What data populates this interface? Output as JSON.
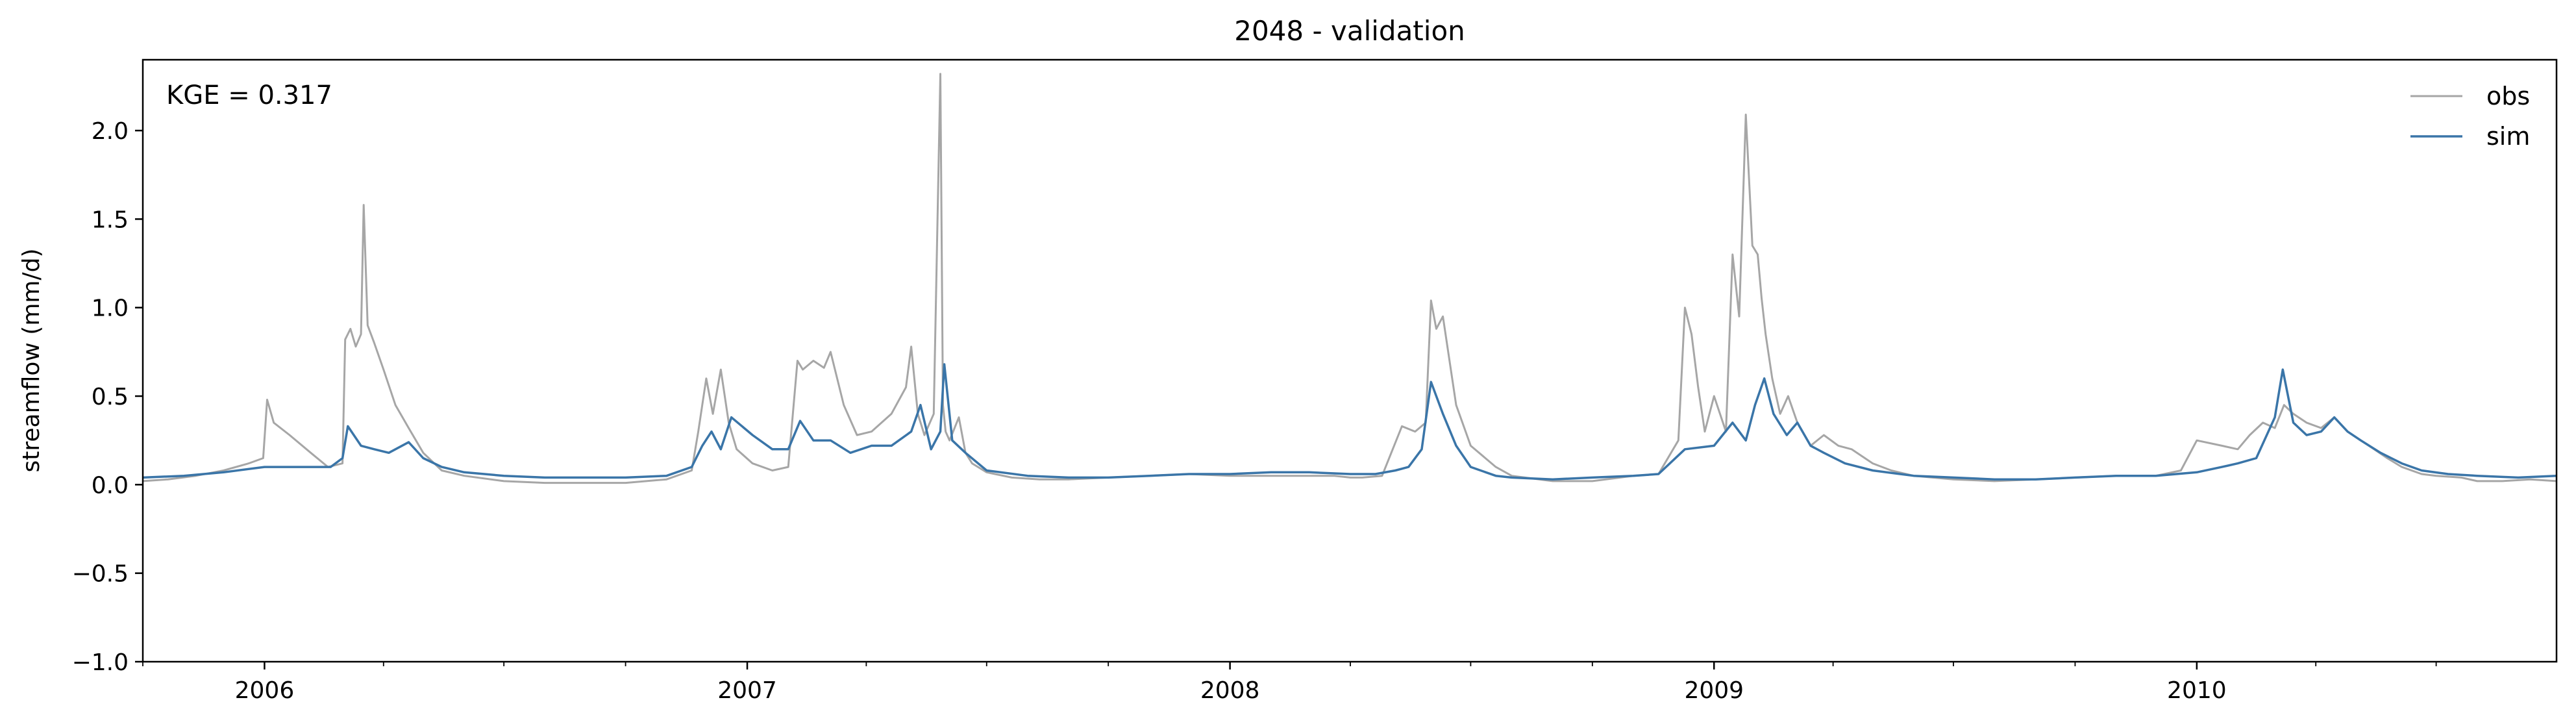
{
  "chart_data": {
    "type": "line",
    "title": "2048 - validation",
    "xlabel": "",
    "ylabel": "streamflow (mm/d)",
    "annotation": "KGE = 0.317",
    "xlim": [
      "2005-10-01",
      "2010-09-30"
    ],
    "ylim": [
      -1.0,
      2.4
    ],
    "yticks": [
      -1.0,
      -0.5,
      0.0,
      0.5,
      1.0,
      1.5,
      2.0
    ],
    "ytick_labels": [
      "−1.0",
      "−0.5",
      "0.0",
      "0.5",
      "1.0",
      "1.5",
      "2.0"
    ],
    "xticks": [
      "2006-01-01",
      "2007-01-01",
      "2008-01-01",
      "2009-01-01",
      "2010-01-01"
    ],
    "xtick_labels": [
      "2006",
      "2007",
      "2008",
      "2009",
      "2010"
    ],
    "grid": false,
    "legend": "top-right",
    "colors": {
      "obs": "#a6a6a6",
      "sim": "#3a75a8"
    },
    "series": [
      {
        "name": "obs",
        "x": [
          "2005-10-01",
          "2005-10-20",
          "2005-11-10",
          "2005-12-01",
          "2005-12-20",
          "2005-12-31",
          "2006-01-03",
          "2006-01-08",
          "2006-01-20",
          "2006-02-05",
          "2006-02-18",
          "2006-03-01",
          "2006-03-03",
          "2006-03-07",
          "2006-03-11",
          "2006-03-15",
          "2006-03-17",
          "2006-03-20",
          "2006-03-25",
          "2006-04-01",
          "2006-04-10",
          "2006-04-20",
          "2006-05-01",
          "2006-05-15",
          "2006-06-01",
          "2006-07-01",
          "2006-08-01",
          "2006-09-01",
          "2006-10-01",
          "2006-11-01",
          "2006-11-20",
          "2006-11-25",
          "2006-12-01",
          "2006-12-06",
          "2006-12-12",
          "2006-12-18",
          "2006-12-24",
          "2007-01-05",
          "2007-01-20",
          "2007-02-01",
          "2007-02-08",
          "2007-02-12",
          "2007-02-20",
          "2007-02-28",
          "2007-03-05",
          "2007-03-15",
          "2007-03-25",
          "2007-04-05",
          "2007-04-20",
          "2007-05-01",
          "2007-05-05",
          "2007-05-10",
          "2007-05-15",
          "2007-05-22",
          "2007-05-27",
          "2007-05-29",
          "2007-05-31",
          "2007-06-03",
          "2007-06-10",
          "2007-06-15",
          "2007-06-20",
          "2007-07-01",
          "2007-07-20",
          "2007-08-10",
          "2007-09-01",
          "2007-10-01",
          "2007-11-01",
          "2007-12-01",
          "2008-01-01",
          "2008-02-01",
          "2008-03-01",
          "2008-03-20",
          "2008-04-01",
          "2008-04-10",
          "2008-04-25",
          "2008-05-10",
          "2008-05-20",
          "2008-05-28",
          "2008-06-01",
          "2008-06-05",
          "2008-06-10",
          "2008-06-20",
          "2008-07-01",
          "2008-07-20",
          "2008-08-01",
          "2008-09-01",
          "2008-10-01",
          "2008-11-01",
          "2008-11-20",
          "2008-12-05",
          "2008-12-10",
          "2008-12-15",
          "2008-12-20",
          "2008-12-25",
          "2009-01-01",
          "2009-01-10",
          "2009-01-15",
          "2009-01-20",
          "2009-01-25",
          "2009-01-30",
          "2009-02-03",
          "2009-02-06",
          "2009-02-09",
          "2009-02-14",
          "2009-02-20",
          "2009-02-26",
          "2009-03-05",
          "2009-03-15",
          "2009-03-25",
          "2009-04-05",
          "2009-04-15",
          "2009-05-01",
          "2009-05-15",
          "2009-06-01",
          "2009-07-01",
          "2009-08-01",
          "2009-09-01",
          "2009-10-01",
          "2009-11-01",
          "2009-12-01",
          "2009-12-20",
          "2010-01-01",
          "2010-01-20",
          "2010-02-01",
          "2010-02-10",
          "2010-02-20",
          "2010-03-01",
          "2010-03-08",
          "2010-03-15",
          "2010-03-25",
          "2010-04-05",
          "2010-04-15",
          "2010-04-25",
          "2010-05-05",
          "2010-05-15",
          "2010-05-25",
          "2010-06-05",
          "2010-06-20",
          "2010-07-01",
          "2010-07-20",
          "2010-08-01",
          "2010-08-20",
          "2010-09-10",
          "2010-09-30"
        ],
        "values": [
          0.02,
          0.03,
          0.05,
          0.08,
          0.12,
          0.15,
          0.48,
          0.35,
          0.28,
          0.18,
          0.1,
          0.12,
          0.82,
          0.88,
          0.78,
          0.85,
          1.58,
          0.9,
          0.8,
          0.65,
          0.45,
          0.32,
          0.18,
          0.08,
          0.05,
          0.02,
          0.01,
          0.01,
          0.01,
          0.03,
          0.08,
          0.3,
          0.6,
          0.4,
          0.65,
          0.35,
          0.2,
          0.12,
          0.08,
          0.1,
          0.7,
          0.65,
          0.7,
          0.66,
          0.75,
          0.45,
          0.28,
          0.3,
          0.4,
          0.55,
          0.78,
          0.4,
          0.28,
          0.4,
          2.32,
          0.45,
          0.3,
          0.25,
          0.38,
          0.18,
          0.12,
          0.07,
          0.04,
          0.03,
          0.03,
          0.04,
          0.05,
          0.06,
          0.05,
          0.05,
          0.05,
          0.05,
          0.04,
          0.04,
          0.05,
          0.33,
          0.3,
          0.35,
          1.04,
          0.88,
          0.95,
          0.45,
          0.22,
          0.1,
          0.05,
          0.02,
          0.02,
          0.05,
          0.06,
          0.25,
          1.0,
          0.85,
          0.55,
          0.3,
          0.5,
          0.3,
          1.3,
          0.95,
          2.09,
          1.35,
          1.3,
          1.05,
          0.85,
          0.6,
          0.4,
          0.5,
          0.35,
          0.22,
          0.28,
          0.22,
          0.2,
          0.12,
          0.08,
          0.05,
          0.03,
          0.02,
          0.03,
          0.04,
          0.05,
          0.05,
          0.08,
          0.25,
          0.22,
          0.2,
          0.28,
          0.35,
          0.32,
          0.45,
          0.4,
          0.35,
          0.32,
          0.38,
          0.3,
          0.25,
          0.2,
          0.15,
          0.1,
          0.06,
          0.05,
          0.04,
          0.02,
          0.02,
          0.03,
          0.02
        ]
      },
      {
        "name": "sim",
        "x": [
          "2005-10-01",
          "2005-11-01",
          "2005-12-01",
          "2006-01-01",
          "2006-02-01",
          "2006-02-20",
          "2006-03-01",
          "2006-03-05",
          "2006-03-15",
          "2006-03-25",
          "2006-04-05",
          "2006-04-20",
          "2006-05-01",
          "2006-05-15",
          "2006-06-01",
          "2006-07-01",
          "2006-08-01",
          "2006-09-01",
          "2006-10-01",
          "2006-11-01",
          "2006-11-20",
          "2006-11-28",
          "2006-12-05",
          "2006-12-12",
          "2006-12-20",
          "2007-01-05",
          "2007-01-20",
          "2007-02-01",
          "2007-02-10",
          "2007-02-20",
          "2007-03-05",
          "2007-03-20",
          "2007-04-05",
          "2007-04-20",
          "2007-05-05",
          "2007-05-12",
          "2007-05-20",
          "2007-05-27",
          "2007-05-30",
          "2007-06-05",
          "2007-06-15",
          "2007-07-01",
          "2007-08-01",
          "2007-09-01",
          "2007-10-01",
          "2007-11-01",
          "2007-12-01",
          "2008-01-01",
          "2008-02-01",
          "2008-03-01",
          "2008-04-01",
          "2008-04-20",
          "2008-05-05",
          "2008-05-15",
          "2008-05-25",
          "2008-06-01",
          "2008-06-10",
          "2008-06-20",
          "2008-07-01",
          "2008-07-20",
          "2008-08-01",
          "2008-09-01",
          "2008-10-01",
          "2008-11-01",
          "2008-11-20",
          "2008-12-10",
          "2009-01-01",
          "2009-01-15",
          "2009-01-25",
          "2009-02-01",
          "2009-02-08",
          "2009-02-15",
          "2009-02-25",
          "2009-03-05",
          "2009-03-15",
          "2009-03-25",
          "2009-04-10",
          "2009-05-01",
          "2009-06-01",
          "2009-07-01",
          "2009-08-01",
          "2009-09-01",
          "2009-10-01",
          "2009-11-01",
          "2009-12-01",
          "2010-01-01",
          "2010-01-20",
          "2010-02-01",
          "2010-02-15",
          "2010-03-01",
          "2010-03-07",
          "2010-03-15",
          "2010-03-25",
          "2010-04-05",
          "2010-04-15",
          "2010-04-25",
          "2010-05-05",
          "2010-05-20",
          "2010-06-05",
          "2010-06-20",
          "2010-07-10",
          "2010-08-01",
          "2010-09-01",
          "2010-09-30"
        ],
        "values": [
          0.04,
          0.05,
          0.07,
          0.1,
          0.1,
          0.1,
          0.15,
          0.33,
          0.22,
          0.2,
          0.18,
          0.24,
          0.15,
          0.1,
          0.07,
          0.05,
          0.04,
          0.04,
          0.04,
          0.05,
          0.1,
          0.22,
          0.3,
          0.2,
          0.38,
          0.28,
          0.2,
          0.2,
          0.36,
          0.25,
          0.25,
          0.18,
          0.22,
          0.22,
          0.3,
          0.45,
          0.2,
          0.3,
          0.68,
          0.25,
          0.18,
          0.08,
          0.05,
          0.04,
          0.04,
          0.05,
          0.06,
          0.06,
          0.07,
          0.07,
          0.06,
          0.06,
          0.08,
          0.1,
          0.2,
          0.58,
          0.4,
          0.22,
          0.1,
          0.05,
          0.04,
          0.03,
          0.04,
          0.05,
          0.06,
          0.2,
          0.22,
          0.35,
          0.25,
          0.45,
          0.6,
          0.4,
          0.28,
          0.35,
          0.22,
          0.18,
          0.12,
          0.08,
          0.05,
          0.04,
          0.03,
          0.03,
          0.04,
          0.05,
          0.05,
          0.07,
          0.1,
          0.12,
          0.15,
          0.38,
          0.65,
          0.35,
          0.28,
          0.3,
          0.38,
          0.3,
          0.25,
          0.18,
          0.12,
          0.08,
          0.06,
          0.05,
          0.04,
          0.05
        ]
      }
    ]
  }
}
